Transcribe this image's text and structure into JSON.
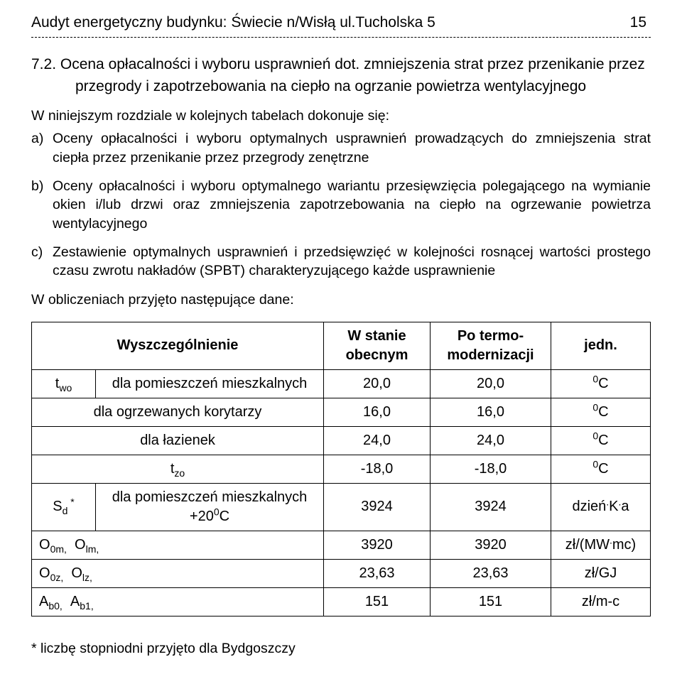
{
  "header": {
    "title": "Audyt energetyczny budynku: Świecie n/Wisłą ul.Tucholska 5",
    "page_number": "15"
  },
  "section": {
    "heading": "7.2. Ocena opłacalności i wyboru usprawnień dot.",
    "heading_cont": "zmniejszenia strat przez przenikanie przez",
    "heading_cont2": "przegrody i zapotrzebowania na ciepło na ogrzanie powietrza wentylacyjnego",
    "intro": "W niniejszym rozdziale w kolejnych tabelach dokonuje się:",
    "items": [
      {
        "marker": "a)",
        "text": "Oceny opłacalności i wyboru optymalnych usprawnień prowadzących do zmniejszenia strat ciepła przez przenikanie przez przegrody zenętrzne"
      },
      {
        "marker": "b)",
        "text": "Oceny opłacalności i wyboru optymalnego wariantu przesięwzięcia polegającego na wymianie okien i/lub drzwi oraz zmniejszenia zapotrzebowania na ciepło na ogrzewanie powietrza wentylacyjnego"
      },
      {
        "marker": "c)",
        "text": "Zestawienie optymalnych usprawnień i przedsięwzięć w kolejności rosnącej wartości prostego czasu zwrotu nakładów (SPBT) charakteryzującego każde usprawnienie"
      }
    ],
    "calc": "W obliczeniach przyjęto następujące dane:"
  },
  "table": {
    "head": {
      "c0": "",
      "c1": "Wyszczególnienie",
      "c2_l1": "W stanie",
      "c2_l2": "obecnym",
      "c3_l1": "Po termo-",
      "c3_l2": "modernizacji",
      "c4": "jedn."
    },
    "rows": [
      {
        "sym_html": "t<sub>wo</sub>",
        "desc": "dla pomieszczeń mieszkalnych",
        "v1": "20,0",
        "v2": "20,0",
        "unit_html": "<sup>0</sup>C"
      },
      {
        "sym_html": "",
        "desc": "dla ogrzewanych korytarzy",
        "v1": "16,0",
        "v2": "16,0",
        "unit_html": "<sup>0</sup>C"
      },
      {
        "sym_html": "",
        "desc": "dla łazienek",
        "v1": "24,0",
        "v2": "24,0",
        "unit_html": "<sup>0</sup>C"
      },
      {
        "sym_html": "",
        "desc_html": "t<sub>zo</sub>",
        "v1": "-18,0",
        "v2": "-18,0",
        "unit_html": "<sup>0</sup>C"
      },
      {
        "sym_html": "S<sub>d</sub><sup>&nbsp;*</sup>",
        "desc_html": "dla pomieszczeń mieszkalnych +20<sup>0</sup>C",
        "v1": "3924",
        "v2": "3924",
        "unit_html": "dzień<sup>.</sup>K<sup>.</sup>a"
      },
      {
        "sym_html": "O<sub>0m,</sub>&nbsp;&nbsp;O<sub>lm,</sub>",
        "desc": "",
        "v1": "3920",
        "v2": "3920",
        "unit_html": "zł/(MW<sup>.</sup>mc)"
      },
      {
        "sym_html": "O<sub>0z,</sub>&nbsp;&nbsp;O<sub>lz,</sub>",
        "desc": "",
        "v1": "23,63",
        "v2": "23,63",
        "unit_html": "zł/GJ"
      },
      {
        "sym_html": "A<sub>b0,</sub>&nbsp;&nbsp;A<sub>b1,</sub>",
        "desc": "",
        "v1": "151",
        "v2": "151",
        "unit_html": "zł/m-c"
      }
    ]
  },
  "footnote": "* liczbę stopniodni przyjęto dla Bydgoszczy"
}
